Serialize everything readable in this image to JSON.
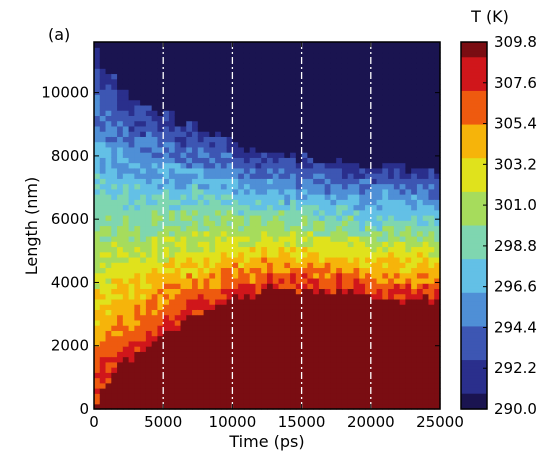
{
  "panel_label": "(a)",
  "colorbar_title": "T (K)",
  "chart_data": {
    "type": "heatmap",
    "title": "",
    "xlabel": "Time (ps)",
    "ylabel": "Length (nm)",
    "xlim": [
      0,
      25000
    ],
    "ylim": [
      0,
      11600
    ],
    "x_ticks": [
      "0",
      "5000",
      "10000",
      "15000",
      "20000",
      "25000"
    ],
    "y_ticks": [
      "0",
      "2000",
      "4000",
      "6000",
      "8000",
      "10000"
    ],
    "x_tick_values": [
      0,
      5000,
      10000,
      15000,
      20000,
      25000
    ],
    "y_tick_values": [
      0,
      2000,
      4000,
      6000,
      8000,
      10000
    ],
    "vertical_reference_lines": [
      5000,
      10000,
      15000,
      20000
    ],
    "colorbar": {
      "label": "T (K)",
      "range": [
        290.0,
        309.8
      ],
      "ticks": [
        "309.8",
        "307.6",
        "305.4",
        "303.2",
        "301.0",
        "298.8",
        "296.6",
        "294.4",
        "292.2",
        "290.0"
      ],
      "tick_values": [
        309.8,
        307.6,
        305.4,
        303.2,
        301.0,
        298.8,
        296.6,
        294.4,
        292.2,
        290.0
      ],
      "colormap": [
        "#1a1450",
        "#2a2f8c",
        "#3d56b3",
        "#4f8fd6",
        "#63c0e6",
        "#7fd6b0",
        "#a6dc5c",
        "#e0e21c",
        "#f6b40a",
        "#ee5a0f",
        "#d0161b",
        "#7a0d12"
      ]
    },
    "boundaries_description_values": {
      "hot_front_length": [
        [
          0,
          0
        ],
        [
          1000,
          900
        ],
        [
          2500,
          1600
        ],
        [
          5000,
          2400
        ],
        [
          7500,
          3000
        ],
        [
          10000,
          3500
        ],
        [
          12500,
          3800
        ],
        [
          15000,
          3800
        ],
        [
          17500,
          3700
        ],
        [
          20000,
          3600
        ],
        [
          22500,
          3500
        ],
        [
          25000,
          3400
        ]
      ],
      "cold_front_length": [
        [
          0,
          11600
        ],
        [
          1000,
          10600
        ],
        [
          2500,
          9900
        ],
        [
          5000,
          9400
        ],
        [
          7500,
          8900
        ],
        [
          10000,
          8500
        ],
        [
          12500,
          8100
        ],
        [
          15000,
          7900
        ],
        [
          17500,
          7800
        ],
        [
          20000,
          7700
        ],
        [
          22500,
          7600
        ],
        [
          25000,
          7500
        ]
      ],
      "equilibrium_length_center": 5800
    }
  }
}
